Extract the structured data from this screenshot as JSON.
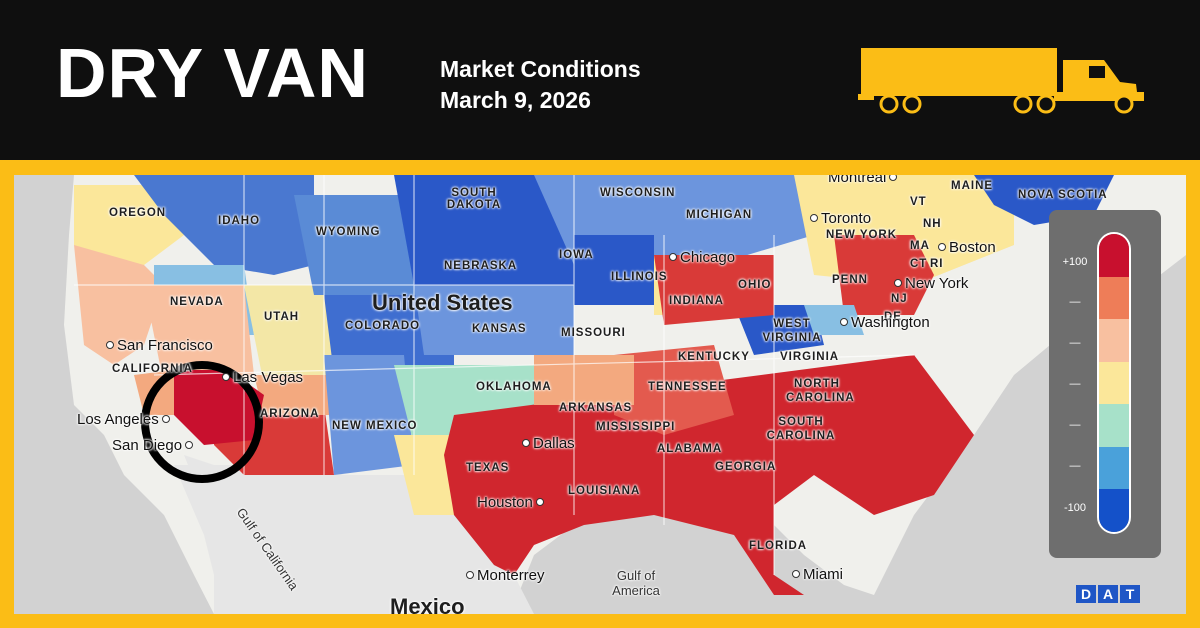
{
  "header": {
    "title": "DRY VAN",
    "subtitle_line1": "Market Conditions",
    "subtitle_line2": "March 9, 2026",
    "truck_icon": "semi-truck-icon",
    "accent_color": "#fbbd16"
  },
  "map": {
    "country_label": "United States",
    "neighbor_label": "Mexico",
    "states": [
      "OREGON",
      "IDAHO",
      "SOUTH DAKOTA",
      "WISCONSIN",
      "MICHIGAN",
      "MAINE",
      "NOVA SCOTIA",
      "WYOMING",
      "IOWA",
      "NEW YORK",
      "VT",
      "NH",
      "MA",
      "CT",
      "RI",
      "NEBRASKA",
      "ILLINOIS",
      "NEVADA",
      "UTAH",
      "COLORADO",
      "KANSAS",
      "MISSOURI",
      "INDIANA",
      "OHIO",
      "PENN",
      "NJ",
      "DE",
      "WEST VIRGINIA",
      "KENTUCKY",
      "VIRGINIA",
      "CALIFORNIA",
      "OKLAHOMA",
      "TENNESSEE",
      "NORTH CAROLINA",
      "ARKANSAS",
      "SOUTH CAROLINA",
      "ARIZONA",
      "NEW MEXICO",
      "MISSISSIPPI",
      "ALABAMA",
      "GEORGIA",
      "TEXAS",
      "LOUISIANA",
      "FLORIDA"
    ],
    "cities": [
      "Montreal",
      "Toronto",
      "Boston",
      "Chicago",
      "New York",
      "Washington",
      "San Francisco",
      "Las Vegas",
      "Los Angeles",
      "San Diego",
      "Dallas",
      "Houston",
      "Monterrey",
      "Miami"
    ],
    "water": [
      "Gulf of California",
      "Gulf of America"
    ],
    "highlight_circle": "southern-california"
  },
  "legend": {
    "top_label": "+100",
    "bottom_label": "-100",
    "mid_ticks": [
      "—",
      "—",
      "—",
      "—",
      "—"
    ],
    "colors": [
      "#c8102e",
      "#ee7d58",
      "#f8c0a0",
      "#fbe79a",
      "#a7e1c9",
      "#4aa1da",
      "#1451c9"
    ]
  },
  "brand": {
    "letters": [
      "D",
      "A",
      "T"
    ]
  }
}
